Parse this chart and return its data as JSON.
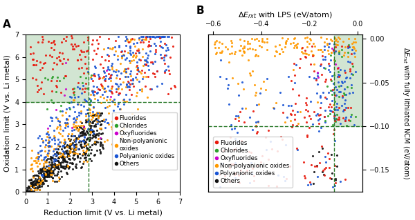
{
  "panel_A": {
    "title": "A",
    "xlabel": "Reduction limit (V vs. Li metal)",
    "ylabel": "Oxidation limit (V vs. Li metal)",
    "xlim": [
      0,
      7
    ],
    "ylim": [
      0,
      7
    ],
    "vline": 2.85,
    "hline": 4.0,
    "xticks": [
      0,
      1,
      2,
      3,
      4,
      5,
      6,
      7
    ],
    "yticks": [
      0,
      1,
      2,
      3,
      4,
      5,
      6,
      7
    ]
  },
  "panel_B": {
    "title": "B",
    "top_xlabel": "ΔE_rxt with LPS (eV/atom)",
    "right_ylabel": "ΔE_rxt with fully lithiated NCM (eV/atom)",
    "xlim": [
      -0.62,
      0.02
    ],
    "ylim": [
      -0.175,
      0.005
    ],
    "vline": -0.1,
    "hline": -0.1,
    "xticks": [
      -0.6,
      -0.4,
      -0.2,
      0.0
    ],
    "yticks": [
      0.0,
      -0.05,
      -0.1,
      -0.15
    ]
  },
  "legend_labels": [
    "Fluorides",
    "Chlorides",
    "Oxyfluorides",
    "Non-polyanionic\noxides",
    "Polyanionic oxides",
    "Others"
  ],
  "legend_labels_B": [
    "Fluorides",
    "Chlorides",
    "Oxyfluorides",
    "Non-polyanionic oxides",
    "Polyanionic oxides",
    "Others"
  ],
  "legend_colors": [
    "#e8190c",
    "#2ca02c",
    "#cc00cc",
    "#ff9900",
    "#1a55d4",
    "#111111"
  ],
  "marker_size": 5,
  "alpha": 0.9,
  "figsize": [
    6.0,
    3.19
  ],
  "dpi": 100,
  "green_color": "#90c090",
  "green_alpha": 0.4,
  "dashes_color": "#2a7a2a"
}
